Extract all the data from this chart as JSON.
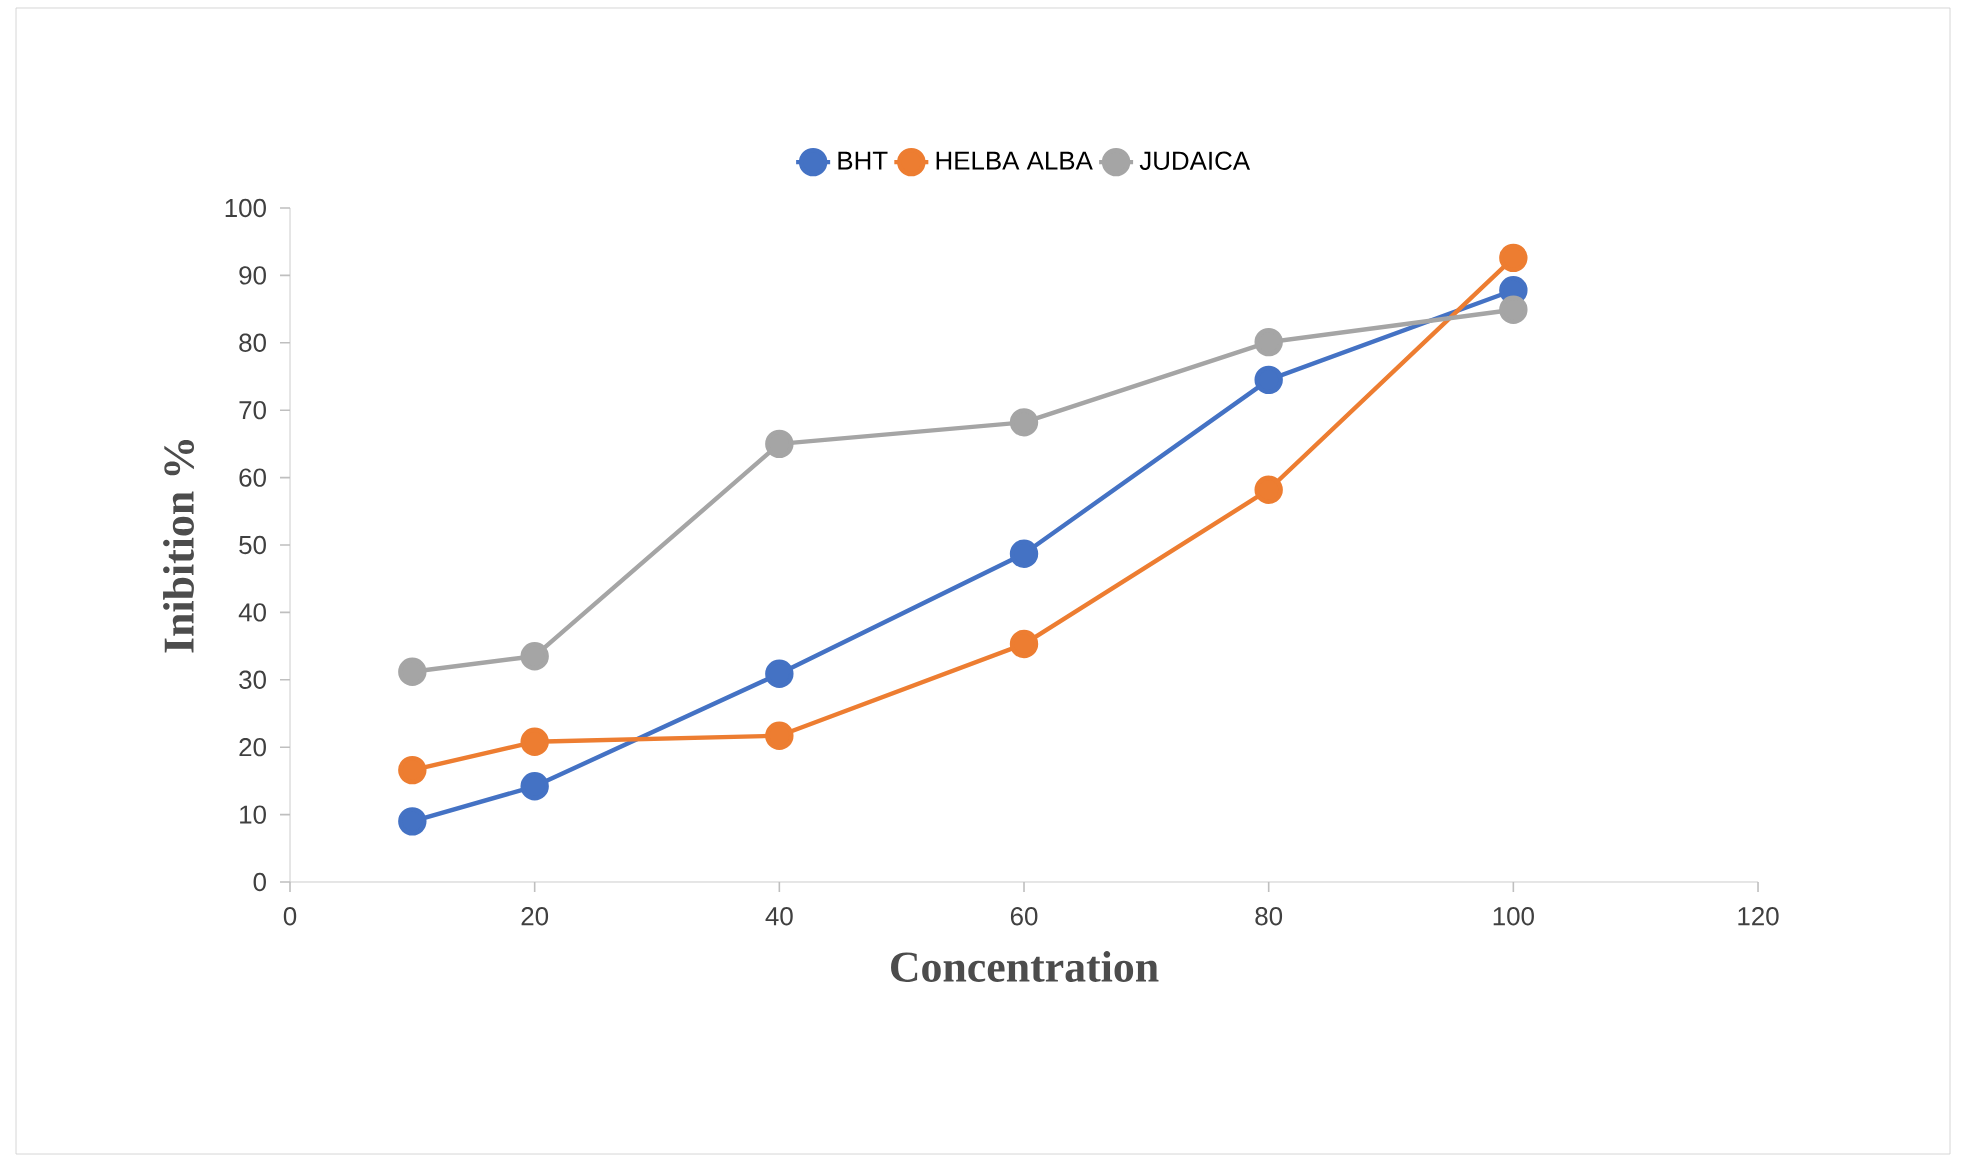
{
  "chart_data": {
    "type": "line",
    "xlabel": "Concentration",
    "ylabel": "Inibition %",
    "x": [
      10,
      20,
      40,
      60,
      80,
      100
    ],
    "series": [
      {
        "name": "BHT",
        "color": "#4472c4",
        "values": [
          9.0,
          14.2,
          30.9,
          48.7,
          74.5,
          87.8
        ]
      },
      {
        "name": "HELBA ALBA",
        "color": "#ed7d31",
        "values": [
          16.6,
          20.8,
          21.7,
          35.3,
          58.2,
          92.6
        ]
      },
      {
        "name": "JUDAICA",
        "color": "#a5a5a5",
        "values": [
          31.2,
          33.5,
          65.0,
          68.2,
          80.1,
          84.9
        ]
      }
    ],
    "xlim": [
      0,
      120
    ],
    "xticks": [
      0,
      20,
      40,
      60,
      80,
      100,
      120
    ],
    "ylim": [
      0,
      100
    ],
    "yticks": [
      0,
      10,
      20,
      30,
      40,
      50,
      60,
      70,
      80,
      90,
      100
    ],
    "grid": false,
    "legend": "top",
    "marker": "circle",
    "line_style": "solid"
  }
}
